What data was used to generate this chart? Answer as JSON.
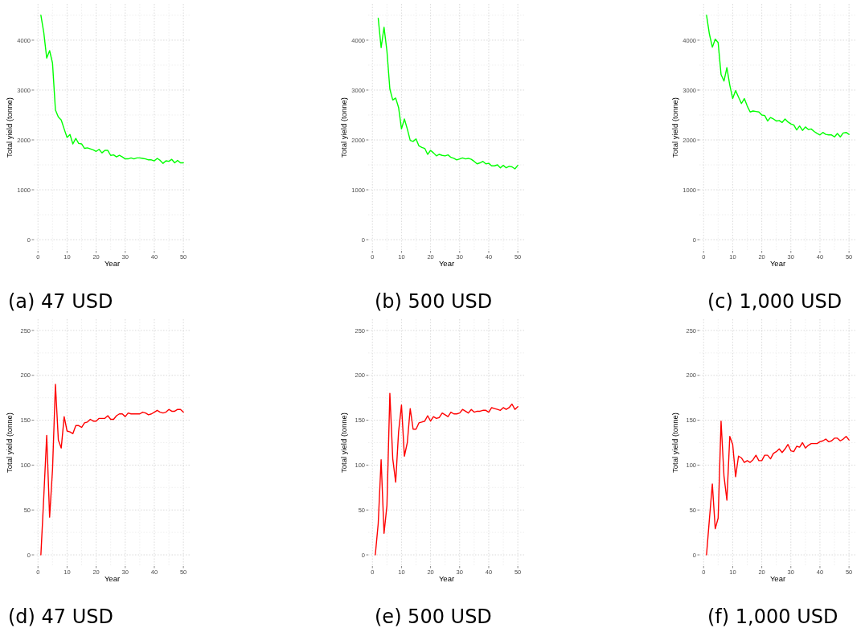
{
  "chart_data": [
    {
      "type": "line",
      "title": "(a) 47 USD",
      "xlabel": "Year",
      "ylabel": "Total yield (tonne)",
      "x": [
        1,
        2,
        3,
        4,
        5,
        6,
        7,
        8,
        9,
        10,
        11,
        12,
        13,
        14,
        15,
        16,
        17,
        18,
        19,
        20,
        21,
        22,
        23,
        24,
        25,
        26,
        27,
        28,
        29,
        30,
        31,
        32,
        33,
        34,
        35,
        36,
        37,
        38,
        39,
        40,
        41,
        42,
        43,
        44,
        45,
        46,
        47,
        48,
        49,
        50
      ],
      "series": [
        {
          "color": "#00ff00",
          "values": [
            4500,
            4150,
            3640,
            3790,
            3540,
            2600,
            2460,
            2400,
            2220,
            2050,
            2110,
            1920,
            2030,
            1930,
            1920,
            1830,
            1840,
            1820,
            1800,
            1770,
            1810,
            1740,
            1790,
            1790,
            1690,
            1700,
            1660,
            1690,
            1660,
            1620,
            1620,
            1640,
            1620,
            1640,
            1640,
            1630,
            1620,
            1600,
            1600,
            1580,
            1630,
            1590,
            1530,
            1580,
            1570,
            1610,
            1540,
            1590,
            1540,
            1540
          ]
        }
      ],
      "xlim": [
        -1.45,
        52.45
      ],
      "ylim": [
        -225,
        4725
      ],
      "xticks": [
        0,
        10,
        20,
        30,
        40,
        50
      ],
      "yticks": [
        0,
        1000,
        2000,
        3000,
        4000
      ],
      "grid": true,
      "line_style": "solid"
    },
    {
      "type": "line",
      "title": "(b) 500 USD",
      "xlabel": "Year",
      "ylabel": "Total yield (tonne)",
      "x": [
        2,
        3,
        4,
        5,
        6,
        7,
        8,
        9,
        10,
        11,
        12,
        13,
        14,
        15,
        16,
        17,
        18,
        19,
        20,
        21,
        22,
        23,
        24,
        25,
        26,
        27,
        28,
        29,
        30,
        31,
        32,
        33,
        34,
        35,
        36,
        37,
        38,
        39,
        40,
        41,
        42,
        43,
        44,
        45,
        46,
        47,
        48,
        49,
        50
      ],
      "series": [
        {
          "color": "#00ff00",
          "values": [
            4440,
            3850,
            4260,
            3780,
            3020,
            2800,
            2840,
            2650,
            2220,
            2420,
            2220,
            1990,
            1970,
            2020,
            1880,
            1850,
            1830,
            1710,
            1790,
            1740,
            1680,
            1710,
            1690,
            1680,
            1700,
            1650,
            1630,
            1600,
            1620,
            1640,
            1620,
            1630,
            1610,
            1570,
            1520,
            1540,
            1570,
            1520,
            1530,
            1480,
            1480,
            1500,
            1440,
            1490,
            1440,
            1470,
            1460,
            1420,
            1490
          ]
        }
      ],
      "xlim": [
        -1.45,
        52.45
      ],
      "ylim": [
        -225,
        4725
      ],
      "xticks": [
        0,
        10,
        20,
        30,
        40,
        50
      ],
      "yticks": [
        0,
        1000,
        2000,
        3000,
        4000
      ],
      "grid": true,
      "line_style": "solid"
    },
    {
      "type": "line",
      "title": "(c) 1,000 USD",
      "xlabel": "Year",
      "ylabel": "Total yield (tonne)",
      "x": [
        1,
        2,
        3,
        4,
        5,
        6,
        7,
        8,
        9,
        10,
        11,
        12,
        13,
        14,
        15,
        16,
        17,
        18,
        19,
        20,
        21,
        22,
        23,
        24,
        25,
        26,
        27,
        28,
        29,
        30,
        31,
        32,
        33,
        34,
        35,
        36,
        37,
        38,
        39,
        40,
        41,
        42,
        43,
        44,
        45,
        46,
        47,
        48,
        49,
        50
      ],
      "series": [
        {
          "color": "#00ff00",
          "values": [
            4500,
            4120,
            3860,
            4020,
            3950,
            3310,
            3180,
            3450,
            3100,
            2830,
            2990,
            2860,
            2730,
            2830,
            2680,
            2560,
            2580,
            2570,
            2560,
            2500,
            2490,
            2380,
            2450,
            2420,
            2380,
            2390,
            2350,
            2420,
            2360,
            2320,
            2300,
            2200,
            2280,
            2190,
            2260,
            2210,
            2220,
            2170,
            2130,
            2100,
            2150,
            2110,
            2100,
            2100,
            2060,
            2130,
            2060,
            2140,
            2150,
            2110
          ]
        }
      ],
      "xlim": [
        -1.45,
        52.45
      ],
      "ylim": [
        -225,
        4725
      ],
      "xticks": [
        0,
        10,
        20,
        30,
        40,
        50
      ],
      "yticks": [
        0,
        1000,
        2000,
        3000,
        4000
      ],
      "grid": true,
      "line_style": "solid"
    },
    {
      "type": "line",
      "title": "(d) 47 USD",
      "xlabel": "Year",
      "ylabel": "Total yield (tonne)",
      "x": [
        1,
        2,
        3,
        4,
        5,
        6,
        7,
        8,
        9,
        10,
        11,
        12,
        13,
        14,
        15,
        16,
        17,
        18,
        19,
        20,
        21,
        22,
        23,
        24,
        25,
        26,
        27,
        28,
        29,
        30,
        31,
        32,
        33,
        34,
        35,
        36,
        37,
        38,
        39,
        40,
        41,
        42,
        43,
        44,
        45,
        46,
        47,
        48,
        49,
        50
      ],
      "series": [
        {
          "color": "#ff0000",
          "values": [
            0,
            65,
            133,
            42,
            95,
            190,
            128,
            119,
            154,
            138,
            137,
            135,
            144,
            144,
            142,
            147,
            148,
            151,
            149,
            149,
            152,
            152,
            152,
            155,
            151,
            151,
            155,
            157,
            157,
            154,
            158,
            157,
            157,
            157,
            157,
            159,
            158,
            156,
            157,
            159,
            161,
            159,
            158,
            159,
            162,
            160,
            160,
            162,
            162,
            159
          ]
        }
      ],
      "xlim": [
        -1.45,
        52.45
      ],
      "ylim": [
        -12.5,
        262.5
      ],
      "xticks": [
        0,
        10,
        20,
        30,
        40,
        50
      ],
      "yticks": [
        0,
        50,
        100,
        150,
        200,
        250
      ],
      "grid": true,
      "line_style": "solid"
    },
    {
      "type": "line",
      "title": "(e) 500 USD",
      "xlabel": "Year",
      "ylabel": "Total yield (tonne)",
      "x": [
        1,
        2,
        3,
        4,
        5,
        6,
        7,
        8,
        9,
        10,
        11,
        12,
        13,
        14,
        15,
        16,
        17,
        18,
        19,
        20,
        21,
        22,
        23,
        24,
        25,
        26,
        27,
        28,
        29,
        30,
        31,
        32,
        33,
        34,
        35,
        36,
        37,
        38,
        39,
        40,
        41,
        42,
        43,
        44,
        45,
        46,
        47,
        48,
        49,
        50
      ],
      "series": [
        {
          "color": "#ff0000",
          "values": [
            0,
            35,
            106,
            24,
            55,
            180,
            107,
            81,
            137,
            167,
            110,
            125,
            163,
            140,
            140,
            147,
            148,
            149,
            155,
            149,
            154,
            152,
            153,
            158,
            156,
            154,
            159,
            157,
            157,
            158,
            162,
            160,
            158,
            162,
            159,
            160,
            160,
            161,
            161,
            159,
            164,
            163,
            162,
            161,
            164,
            162,
            164,
            168,
            162,
            165
          ]
        }
      ],
      "xlim": [
        -1.45,
        52.45
      ],
      "ylim": [
        -12.5,
        262.5
      ],
      "xticks": [
        0,
        10,
        20,
        30,
        40,
        50
      ],
      "yticks": [
        0,
        50,
        100,
        150,
        200,
        250
      ],
      "grid": true,
      "line_style": "solid"
    },
    {
      "type": "line",
      "title": "(f) 1,000 USD",
      "xlabel": "Year",
      "ylabel": "Total yield (tonne)",
      "x": [
        1,
        2,
        3,
        4,
        5,
        6,
        7,
        8,
        9,
        10,
        11,
        12,
        13,
        14,
        15,
        16,
        17,
        18,
        19,
        20,
        21,
        22,
        23,
        24,
        25,
        26,
        27,
        28,
        29,
        30,
        31,
        32,
        33,
        34,
        35,
        36,
        37,
        38,
        39,
        40,
        41,
        42,
        43,
        44,
        45,
        46,
        47,
        48,
        49,
        50
      ],
      "series": [
        {
          "color": "#ff0000",
          "values": [
            0,
            40,
            79,
            29,
            41,
            149,
            88,
            61,
            132,
            123,
            87,
            110,
            108,
            103,
            105,
            103,
            106,
            111,
            105,
            105,
            111,
            111,
            107,
            113,
            115,
            118,
            114,
            118,
            123,
            116,
            115,
            121,
            120,
            125,
            119,
            122,
            124,
            124,
            124,
            126,
            127,
            129,
            126,
            127,
            130,
            130,
            127,
            129,
            132,
            128
          ]
        }
      ],
      "xlim": [
        -1.45,
        52.45
      ],
      "ylim": [
        -12.5,
        262.5
      ],
      "xticks": [
        0,
        10,
        20,
        30,
        40,
        50
      ],
      "yticks": [
        0,
        50,
        100,
        150,
        200,
        250
      ],
      "grid": true,
      "line_style": "solid"
    }
  ]
}
